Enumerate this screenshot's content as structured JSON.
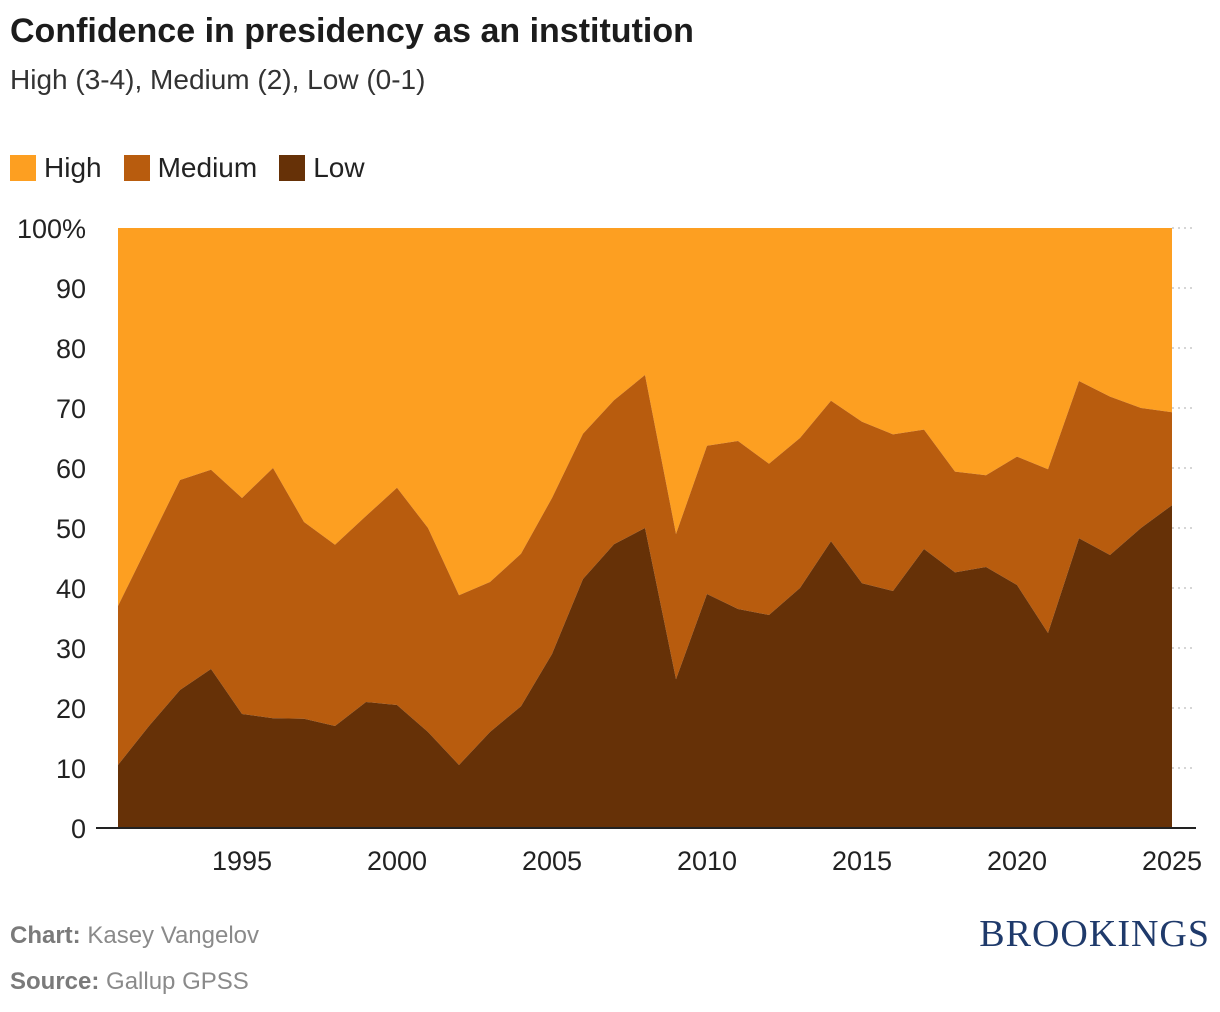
{
  "title": "Confidence in presidency as an institution",
  "subtitle": "High (3-4), Medium (2), Low (0-1)",
  "legend": [
    {
      "label": "High",
      "color": "#fd9f21"
    },
    {
      "label": "Medium",
      "color": "#b85c0e"
    },
    {
      "label": "Low",
      "color": "#663107"
    }
  ],
  "footer": {
    "chart_label": "Chart:",
    "chart_value": "Kasey Vangelov",
    "source_label": "Source:",
    "source_value": "Gallup GPSS"
  },
  "logo": "BROOKINGS",
  "chart_data": {
    "type": "area",
    "stacked": true,
    "x": [
      1991,
      1992,
      1993,
      1994,
      1995,
      1996,
      1997,
      1998,
      1999,
      2000,
      2001,
      2002,
      2003,
      2004,
      2005,
      2006,
      2007,
      2008,
      2009,
      2010,
      2011,
      2012,
      2013,
      2014,
      2015,
      2016,
      2017,
      2018,
      2019,
      2020,
      2021,
      2022,
      2023,
      2024,
      2025
    ],
    "series": [
      {
        "name": "Low",
        "color": "#663107",
        "values": [
          10.5,
          17,
          23,
          26.5,
          19,
          18.3,
          18.2,
          17,
          21,
          20.5,
          16,
          10.5,
          16,
          20.3,
          29,
          41.5,
          47.3,
          50,
          24.8,
          39,
          36.5,
          35.5,
          40,
          47.8,
          40.8,
          39.5,
          46.5,
          42.6,
          43.5,
          40.5,
          32.5,
          48.3,
          45.5,
          50,
          53.8
        ]
      },
      {
        "name": "Medium",
        "color": "#b85c0e",
        "cumulative": [
          37,
          47.5,
          58,
          59.7,
          55,
          60,
          51,
          47.2,
          52,
          56.7,
          50,
          38.8,
          41,
          45.7,
          55,
          65.7,
          71.3,
          75.5,
          49,
          63.7,
          64.5,
          60.7,
          65,
          71.2,
          67.7,
          65.6,
          66.4,
          59.4,
          58.8,
          61.9,
          59.8,
          74.5,
          71.9,
          70,
          69.3
        ]
      },
      {
        "name": "High",
        "color": "#fd9f21",
        "cumulative": [
          100,
          100,
          100,
          100,
          100,
          100,
          100,
          100,
          100,
          100,
          100,
          100,
          100,
          100,
          100,
          100,
          100,
          100,
          100,
          100,
          100,
          100,
          100,
          100,
          100,
          100,
          100,
          100,
          100,
          100,
          100,
          100,
          100,
          100,
          100
        ]
      }
    ],
    "ylim": [
      0,
      100
    ],
    "yticks": [
      "0",
      "10",
      "20",
      "30",
      "40",
      "50",
      "60",
      "70",
      "80",
      "90",
      "100%"
    ],
    "xticks": [
      "1995",
      "2000",
      "2005",
      "2010",
      "2015",
      "2020",
      "2025"
    ],
    "grid": true
  }
}
